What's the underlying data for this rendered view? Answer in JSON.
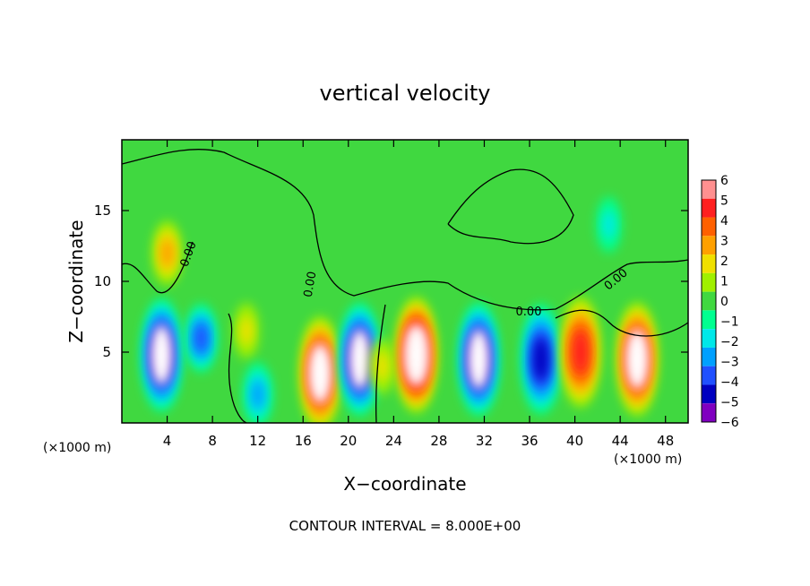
{
  "chart_data": {
    "type": "heatmap",
    "title": "vertical velocity",
    "xlabel": "X−coordinate",
    "ylabel": "Z−coordinate",
    "x_units_left": "(×1000 m)",
    "x_units_right": "(×1000 m)",
    "xlim": [
      0,
      50
    ],
    "ylim": [
      0,
      20
    ],
    "x_ticks": [
      4,
      8,
      12,
      16,
      20,
      24,
      28,
      32,
      36,
      40,
      44,
      48
    ],
    "y_ticks": [
      5,
      10,
      15
    ],
    "contour_labels": [
      "0.00",
      "0.00",
      "0.00",
      "0.00"
    ],
    "colorbar": {
      "levels": [
        6,
        5,
        4,
        3,
        2,
        1,
        0,
        -1,
        -2,
        -3,
        -4,
        -5,
        -6
      ],
      "tick_labels": [
        "6",
        "5",
        "4",
        "3",
        "2",
        "1",
        "0",
        "−1",
        "−2",
        "−3",
        "−4",
        "−5",
        "−6"
      ],
      "colors": [
        "#ff9090",
        "#ff2020",
        "#ff6000",
        "#ffa000",
        "#f0e000",
        "#a0f000",
        "#40d840",
        "#00ff90",
        "#00e8e8",
        "#00a0ff",
        "#2050ff",
        "#0000c0",
        "#8000c0"
      ]
    },
    "features": [
      {
        "x": 3.5,
        "z": 4.8,
        "w": -5.5
      },
      {
        "x": 7.0,
        "z": 6.0,
        "w": -3.5
      },
      {
        "x": 11.0,
        "z": 6.5,
        "w": 2.0
      },
      {
        "x": 12.0,
        "z": 2.0,
        "w": -3.0
      },
      {
        "x": 17.5,
        "z": 3.5,
        "w": 6.0
      },
      {
        "x": 21.0,
        "z": 4.5,
        "w": -5.5
      },
      {
        "x": 23.0,
        "z": 4.0,
        "w": 2.0
      },
      {
        "x": 26.0,
        "z": 4.8,
        "w": 6.5
      },
      {
        "x": 31.5,
        "z": 4.5,
        "w": -6.0
      },
      {
        "x": 37.0,
        "z": 4.5,
        "w": -4.5
      },
      {
        "x": 40.5,
        "z": 5.0,
        "w": 4.5
      },
      {
        "x": 45.5,
        "z": 4.5,
        "w": 6.0
      },
      {
        "x": 4.0,
        "z": 12.0,
        "w": 3.0
      },
      {
        "x": 43.0,
        "z": 14.0,
        "w": -2.0
      }
    ],
    "grid": false,
    "legend": "colorbar-right"
  },
  "footer": {
    "contour_interval": "CONTOUR INTERVAL = 8.000E+00"
  }
}
